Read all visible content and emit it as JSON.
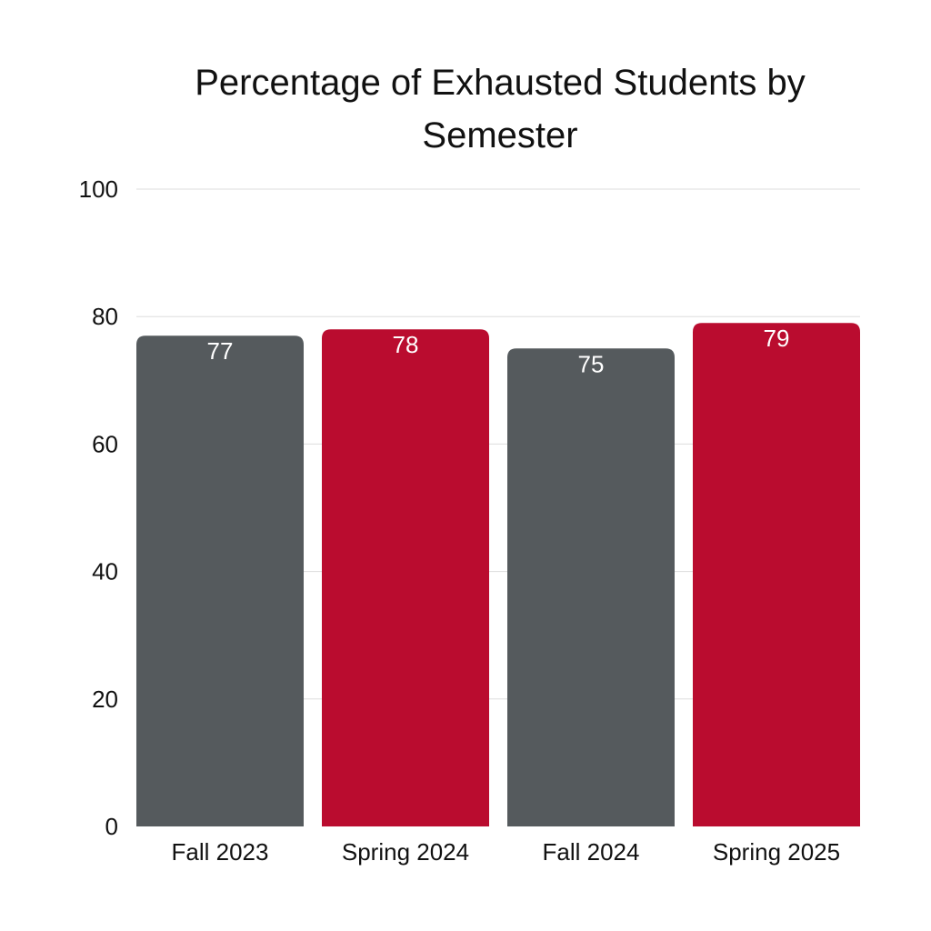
{
  "chart_data": {
    "type": "bar",
    "title": "Percentage of Exhausted Students by\nSemester",
    "categories": [
      "Fall 2023",
      "Spring 2024",
      "Fall 2024",
      "Spring 2025"
    ],
    "values": [
      77,
      78,
      75,
      79
    ],
    "data_labels": [
      "77",
      "78",
      "75",
      "79"
    ],
    "bar_colors": [
      "#555A5D",
      "#BA0C2F",
      "#555A5D",
      "#BA0C2F"
    ],
    "ylim": [
      0,
      100
    ],
    "yticks": [
      0,
      20,
      40,
      60,
      80,
      100
    ],
    "ytick_labels": [
      "0",
      "20",
      "40",
      "60",
      "80",
      "100"
    ],
    "grid": true,
    "gridline_color": "#DDDDDD",
    "data_label_color": "#FFFFFF",
    "legend": "none"
  }
}
